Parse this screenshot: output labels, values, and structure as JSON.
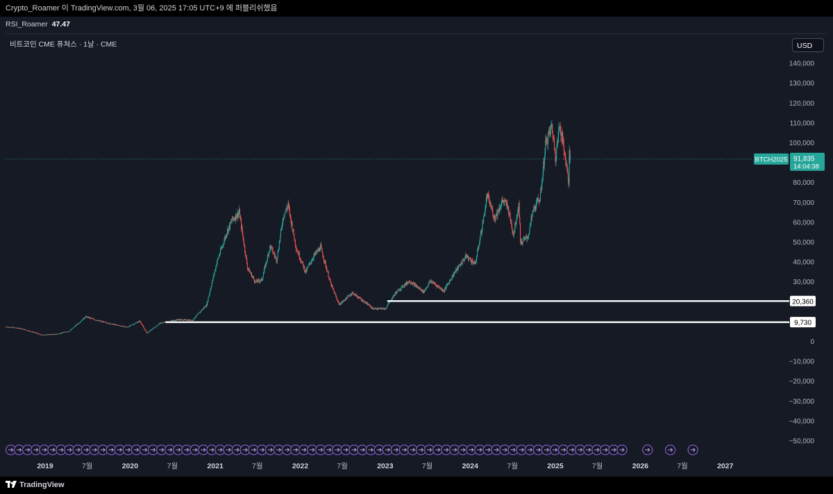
{
  "header": {
    "publish_line": "Crypto_Roamer 이 TradingView.com, 3월 06, 2025 17:05 UTC+9 에 퍼블리쉬했음"
  },
  "indicator": {
    "name": "RSI_Roamer",
    "value": "47.47"
  },
  "symbol_title": "비트코인 CME 퓨쳐스 · 1날 · CME",
  "currency": "USD",
  "footer": {
    "brand": "TradingView"
  },
  "colors": {
    "up": "#26a69a",
    "down": "#ef5350",
    "label_bg": "#26a69a",
    "level_line": "#ffffff",
    "event_marker": "#7e57c2",
    "last_price_line": "#26a69a"
  },
  "chart_data": {
    "type": "candlestick",
    "symbol": "BTCH2025",
    "last_price_label": "91,835",
    "countdown": "14:04:38",
    "last_price": 91835,
    "ylim": [
      -52000,
      148000
    ],
    "y_ticks": [
      140000,
      130000,
      120000,
      110000,
      100000,
      80000,
      70000,
      60000,
      50000,
      40000,
      30000,
      0,
      -10000,
      -20000,
      -30000,
      -40000,
      -50000
    ],
    "y_tick_labels": [
      "140,000",
      "130,000",
      "120,000",
      "110,000",
      "100,000",
      "80,000",
      "70,000",
      "60,000",
      "50,000",
      "40,000",
      "30,000",
      "0",
      "−10,000",
      "−20,000",
      "−30,000",
      "−40,000",
      "−50,000"
    ],
    "x_range": [
      "2018-07-15",
      "2027-05-01"
    ],
    "x_ticks": [
      {
        "date": "2019-01-01",
        "label": "2019"
      },
      {
        "date": "2019-07-01",
        "label": "7월"
      },
      {
        "date": "2020-01-01",
        "label": "2020"
      },
      {
        "date": "2020-07-01",
        "label": "7월"
      },
      {
        "date": "2021-01-01",
        "label": "2021"
      },
      {
        "date": "2021-07-01",
        "label": "7월"
      },
      {
        "date": "2022-01-01",
        "label": "2022"
      },
      {
        "date": "2022-07-01",
        "label": "7월"
      },
      {
        "date": "2023-01-01",
        "label": "2023"
      },
      {
        "date": "2023-07-01",
        "label": "7월"
      },
      {
        "date": "2024-01-01",
        "label": "2024"
      },
      {
        "date": "2024-07-01",
        "label": "7월"
      },
      {
        "date": "2025-01-01",
        "label": "2025"
      },
      {
        "date": "2025-07-01",
        "label": "7월"
      },
      {
        "date": "2026-01-01",
        "label": "2026"
      },
      {
        "date": "2026-07-01",
        "label": "7월"
      },
      {
        "date": "2027-01-01",
        "label": "2027"
      }
    ],
    "price_path": [
      [
        "2018-07-15",
        7400
      ],
      [
        "2018-09-15",
        6600
      ],
      [
        "2018-11-20",
        4400
      ],
      [
        "2018-12-15",
        3300
      ],
      [
        "2019-02-15",
        3600
      ],
      [
        "2019-04-15",
        5200
      ],
      [
        "2019-06-25",
        12500
      ],
      [
        "2019-08-15",
        10500
      ],
      [
        "2019-10-25",
        8500
      ],
      [
        "2019-12-20",
        7200
      ],
      [
        "2020-02-12",
        10300
      ],
      [
        "2020-03-13",
        4200
      ],
      [
        "2020-05-10",
        9300
      ],
      [
        "2020-07-25",
        11000
      ],
      [
        "2020-09-25",
        10700
      ],
      [
        "2020-11-25",
        18500
      ],
      [
        "2021-01-08",
        40000
      ],
      [
        "2021-02-20",
        55000
      ],
      [
        "2021-03-14",
        61000
      ],
      [
        "2021-04-14",
        65000
      ],
      [
        "2021-05-20",
        37000
      ],
      [
        "2021-06-22",
        30000
      ],
      [
        "2021-07-20",
        31000
      ],
      [
        "2021-08-25",
        48000
      ],
      [
        "2021-09-22",
        41000
      ],
      [
        "2021-10-20",
        63000
      ],
      [
        "2021-11-10",
        68500
      ],
      [
        "2021-12-15",
        47000
      ],
      [
        "2022-01-24",
        35000
      ],
      [
        "2022-02-28",
        43000
      ],
      [
        "2022-03-30",
        47500
      ],
      [
        "2022-05-12",
        29000
      ],
      [
        "2022-06-18",
        18500
      ],
      [
        "2022-08-12",
        24500
      ],
      [
        "2022-10-15",
        19000
      ],
      [
        "2022-11-10",
        16500
      ],
      [
        "2023-01-01",
        16500
      ],
      [
        "2023-02-15",
        24500
      ],
      [
        "2023-03-15",
        27500
      ],
      [
        "2023-04-15",
        30500
      ],
      [
        "2023-06-15",
        25000
      ],
      [
        "2023-07-15",
        30500
      ],
      [
        "2023-09-10",
        25500
      ],
      [
        "2023-10-25",
        34500
      ],
      [
        "2023-12-15",
        43000
      ],
      [
        "2024-01-23",
        39000
      ],
      [
        "2024-02-28",
        62000
      ],
      [
        "2024-03-14",
        73500
      ],
      [
        "2024-04-15",
        62000
      ],
      [
        "2024-05-20",
        71000
      ],
      [
        "2024-06-10",
        68000
      ],
      [
        "2024-07-05",
        54000
      ],
      [
        "2024-07-28",
        69000
      ],
      [
        "2024-08-05",
        49500
      ],
      [
        "2024-09-06",
        53000
      ],
      [
        "2024-09-28",
        66000
      ],
      [
        "2024-10-29",
        73000
      ],
      [
        "2024-11-20",
        99000
      ],
      [
        "2024-12-17",
        108500
      ],
      [
        "2025-01-02",
        93000
      ],
      [
        "2025-01-20",
        109500
      ],
      [
        "2025-02-08",
        96000
      ],
      [
        "2025-02-25",
        83000
      ],
      [
        "2025-02-28",
        79000
      ],
      [
        "2025-03-02",
        94000
      ],
      [
        "2025-03-06",
        91835
      ]
    ],
    "levels": [
      {
        "price": 20360,
        "label": "20,360",
        "from": "2023-01-10"
      },
      {
        "price": 9730,
        "label": "9,730",
        "from": "2020-06-01"
      }
    ],
    "event_markers": {
      "glyph": "⇥",
      "dense_from": "2018-07-15",
      "dense_to": "2025-11-20",
      "dense_count": 74,
      "sparse_dates": [
        "2026-02-01",
        "2026-05-10",
        "2026-08-15"
      ]
    }
  }
}
